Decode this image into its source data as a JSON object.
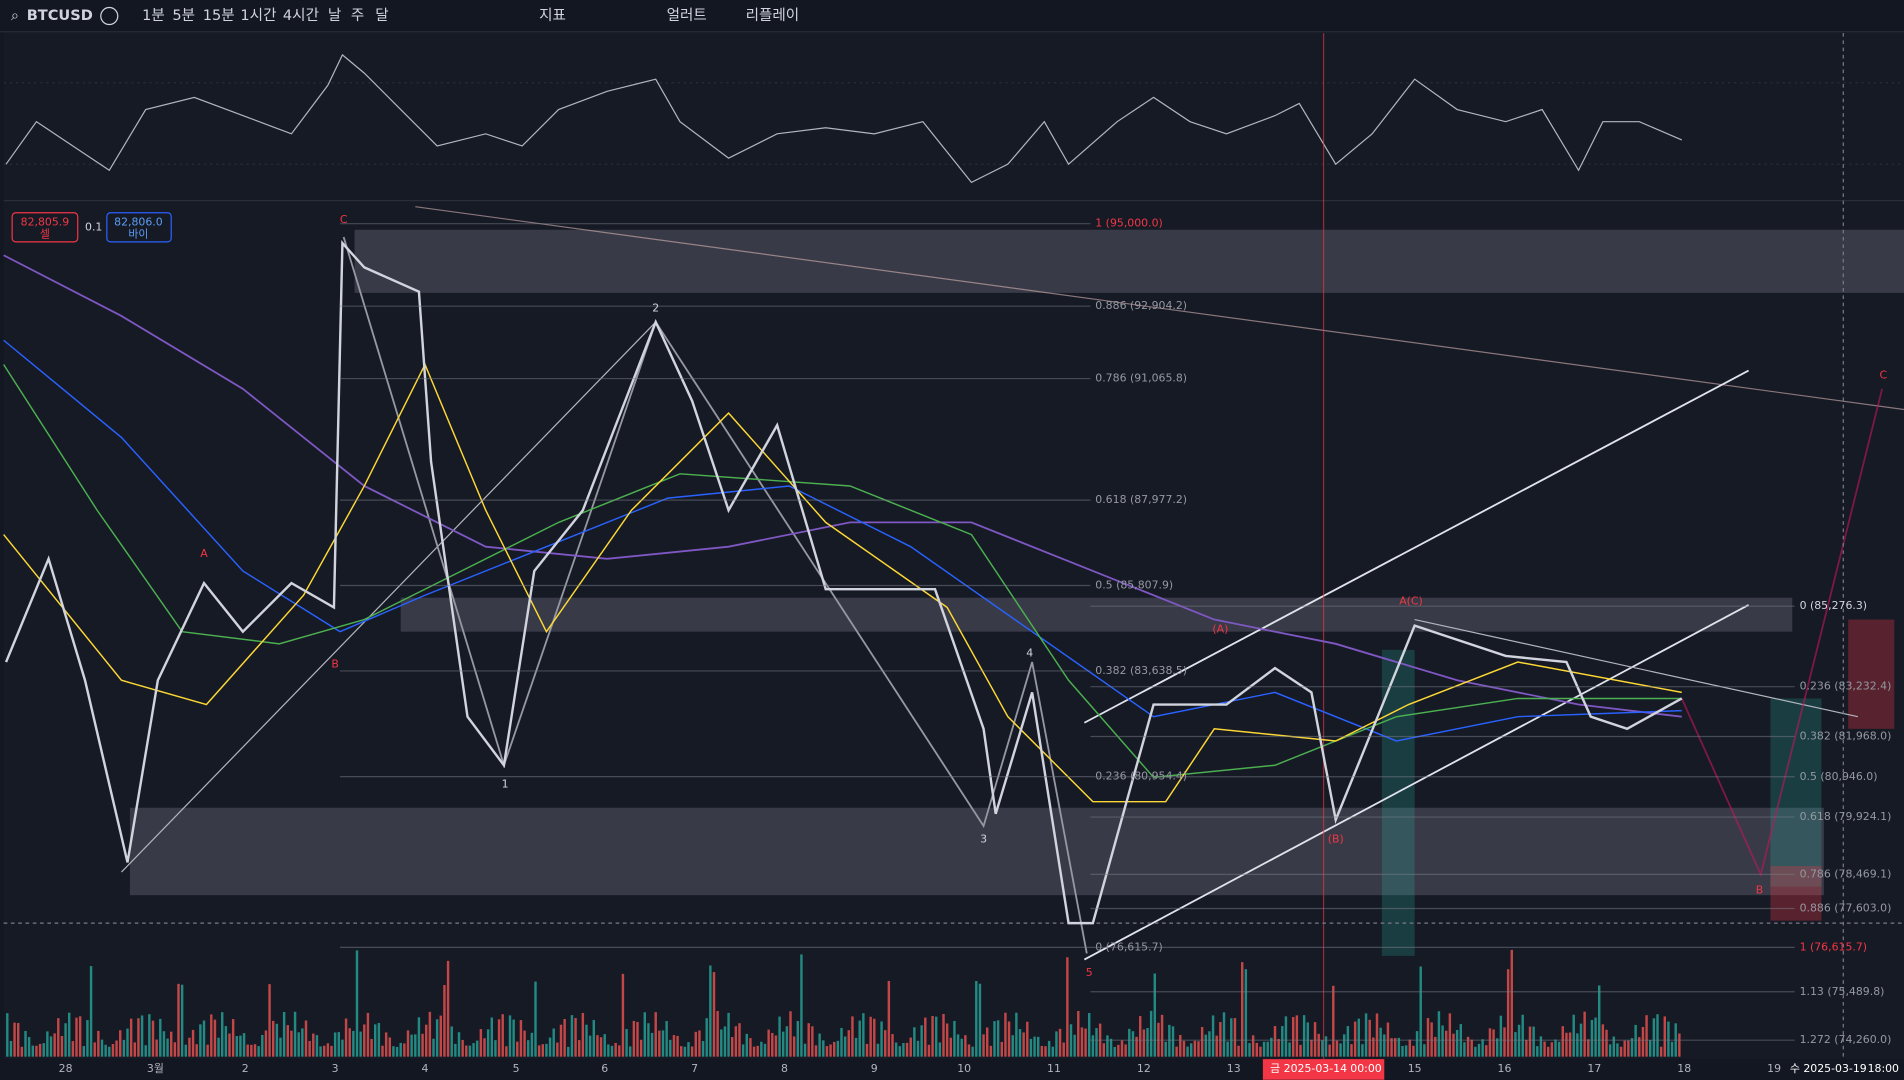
{
  "toolbar": {
    "symbol": "BTCUSD",
    "intervals": [
      "1분",
      "5분",
      "15분",
      "1시간",
      "4시간",
      "날",
      "주",
      "달"
    ],
    "active_interval": "1시간",
    "indicators": "지표",
    "alert": "얼러트",
    "replay": "리플레이"
  },
  "price_tags": {
    "sell": {
      "price": "82,805.9",
      "label": "셀"
    },
    "spread": "0.1",
    "buy": {
      "price": "82,806.0",
      "label": "바이"
    }
  },
  "fib_left": [
    "1 (95,000.0)",
    "0.886 (92,904.2)",
    "0.786 (91,065.8)",
    "0.618 (87,977.2)",
    "0.5 (85,807.9)",
    "0.382 (83,638.5)",
    "0.236 (80,954.4)",
    "0 (76,615.7)"
  ],
  "fib_right": [
    "0 (85,276.3)",
    "0.236 (83,232.4)",
    "0.382 (81,968.0)",
    "0.5 (80,946.0)",
    "0.618 (79,924.1)",
    "0.786 (78,469.1)",
    "0.886 (77,603.0)",
    "1 (76,615.7)",
    "1.13 (75,489.8)",
    "1.272 (74,260.0)"
  ],
  "wave_labels": [
    "C",
    "A",
    "B",
    "1",
    "2",
    "3",
    "4",
    "5",
    "(A)",
    "(B)",
    "A(C)",
    "B",
    "C"
  ],
  "x_axis": [
    "28",
    "3월",
    "2",
    "3",
    "4",
    "5",
    "6",
    "7",
    "8",
    "9",
    "10",
    "11",
    "12",
    "13",
    "15",
    "16",
    "17",
    "18",
    "19"
  ],
  "cursor": {
    "date": "금 2025-03-14",
    "time": "00:00"
  },
  "last_date": {
    "date": "수 2025-03-19",
    "time": "18:00"
  }
}
